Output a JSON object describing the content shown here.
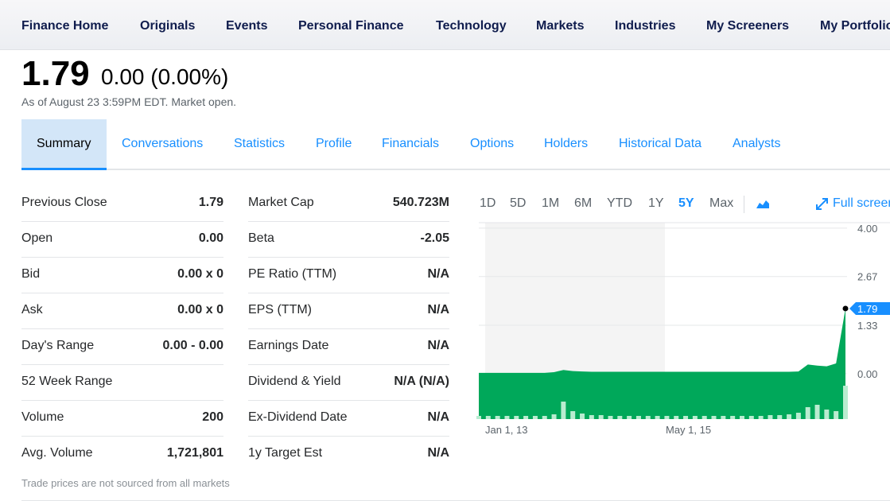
{
  "nav": [
    "Finance Home",
    "Originals",
    "Events",
    "Personal Finance",
    "Technology",
    "Markets",
    "Industries",
    "My Screeners",
    "My Portfolio"
  ],
  "quote": {
    "price": "1.79",
    "change": "0.00 (0.00%)",
    "as_of": "As of August 23 3:59PM EDT. Market open."
  },
  "tabs": [
    "Summary",
    "Conversations",
    "Statistics",
    "Profile",
    "Financials",
    "Options",
    "Holders",
    "Historical Data",
    "Analysts"
  ],
  "active_tab": 0,
  "left_table": [
    {
      "label": "Previous Close",
      "value": "1.79"
    },
    {
      "label": "Open",
      "value": "0.00"
    },
    {
      "label": "Bid",
      "value": "0.00 x 0"
    },
    {
      "label": "Ask",
      "value": "0.00 x 0"
    },
    {
      "label": "Day's Range",
      "value": "0.00 - 0.00"
    },
    {
      "label": "52 Week Range"
    },
    {
      "label": "Volume",
      "value": "200"
    },
    {
      "label": "Avg. Volume",
      "value": "1,721,801"
    }
  ],
  "right_table": [
    {
      "label": "Market Cap",
      "value": "540.723M"
    },
    {
      "label": "Beta",
      "value": "-2.05"
    },
    {
      "label": "PE Ratio (TTM)",
      "value": "N/A"
    },
    {
      "label": "EPS (TTM)",
      "value": "N/A"
    },
    {
      "label": "Earnings Date",
      "value": "N/A"
    },
    {
      "label": "Dividend & Yield",
      "value": "N/A (N/A)"
    },
    {
      "label": "Ex-Dividend Date",
      "value": "N/A"
    },
    {
      "label": "1y Target Est",
      "value": "N/A"
    }
  ],
  "note": "Trade prices are not sourced from all markets",
  "ranges": [
    "1D",
    "5D",
    "1M",
    "6M",
    "YTD",
    "1Y",
    "5Y",
    "Max"
  ],
  "active_range": 6,
  "full_screen": "Full screen",
  "chart_data": {
    "type": "area",
    "color": "#00a85a",
    "volume_color": "#b9ecd0",
    "x_labels": [
      "Jan 1, 13",
      "May 1, 15"
    ],
    "ylim": [
      -1.25,
      4.15
    ],
    "yticks": [
      {
        "value": 0,
        "label": "0.00"
      },
      {
        "value": 1.33,
        "label": "1.33"
      },
      {
        "value": 2.67,
        "label": "2.67"
      },
      {
        "value": 4,
        "label": "4.00"
      }
    ],
    "last_label": "1.79",
    "values": [
      0.02,
      0.02,
      0.02,
      0.02,
      0.02,
      0.02,
      0.02,
      0.02,
      0.04,
      0.1,
      0.07,
      0.06,
      0.05,
      0.05,
      0.05,
      0.05,
      0.05,
      0.05,
      0.05,
      0.05,
      0.05,
      0.05,
      0.05,
      0.05,
      0.05,
      0.05,
      0.05,
      0.05,
      0.05,
      0.05,
      0.05,
      0.05,
      0.05,
      0.05,
      0.06,
      0.25,
      0.22,
      0.2,
      0.28,
      1.79
    ],
    "volumes": [
      4,
      4,
      4,
      4,
      4,
      4,
      4,
      4,
      6,
      22,
      10,
      7,
      5,
      5,
      4,
      4,
      4,
      4,
      4,
      4,
      4,
      4,
      4,
      4,
      4,
      4,
      4,
      4,
      4,
      4,
      4,
      5,
      5,
      6,
      8,
      15,
      18,
      12,
      10,
      42
    ]
  }
}
